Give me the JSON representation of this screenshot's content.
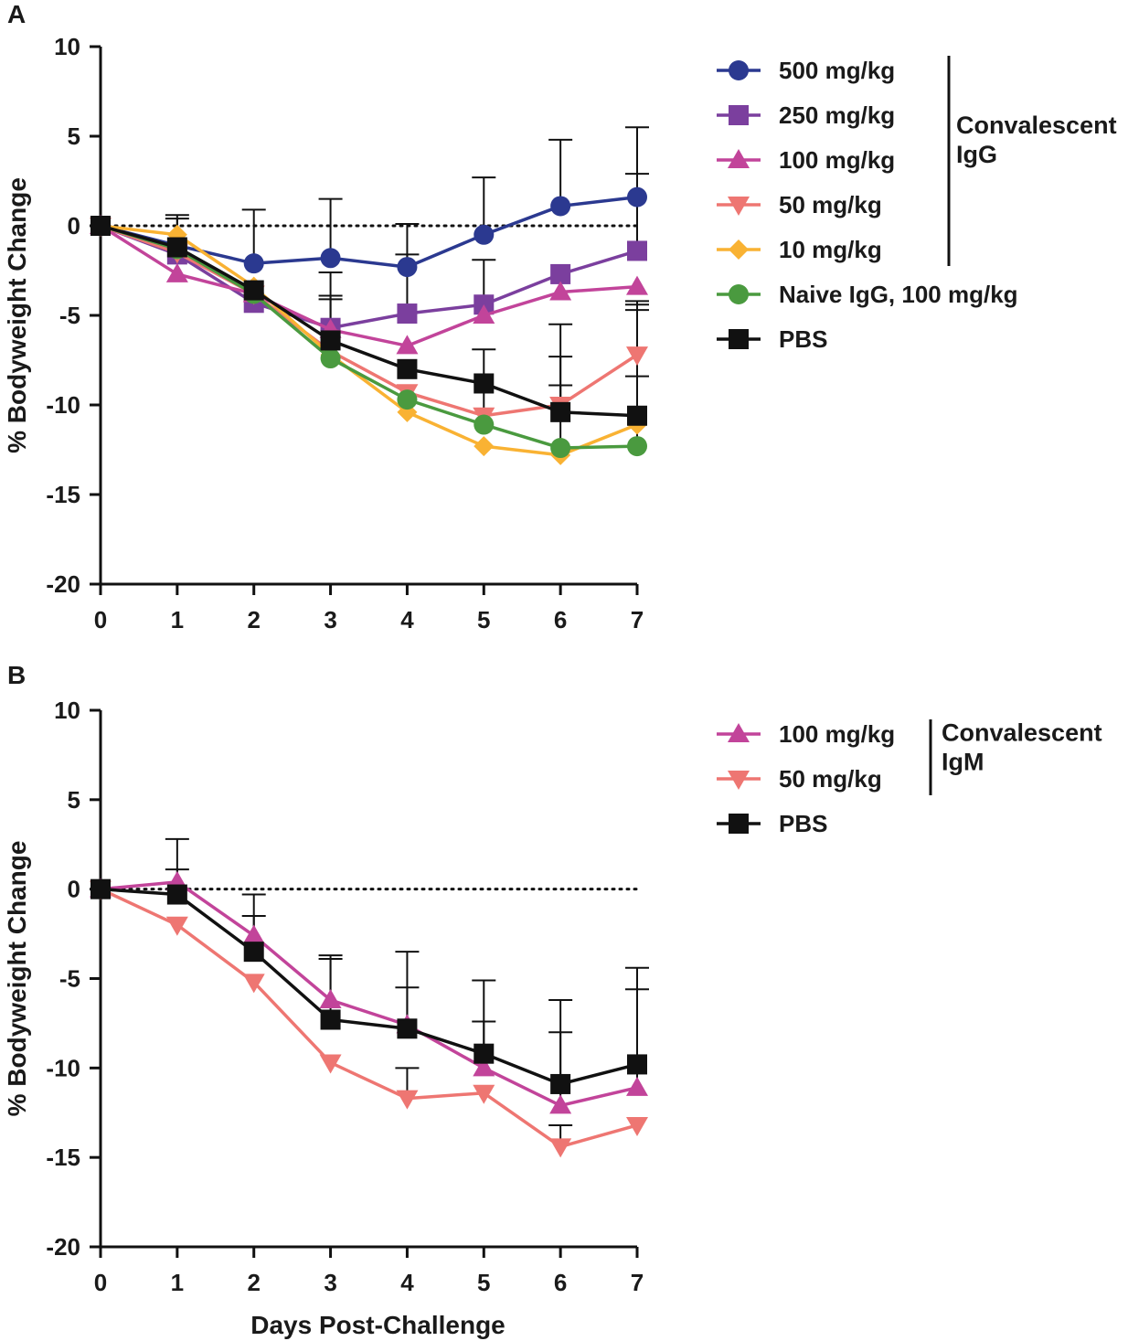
{
  "chart_data": [
    {
      "panel": "A",
      "type": "line",
      "xlabel": "",
      "ylabel": "% Bodyweight Change",
      "x": [
        0,
        1,
        2,
        3,
        4,
        5,
        6,
        7
      ],
      "xlim": [
        0,
        7
      ],
      "ylim": [
        -20,
        10
      ],
      "y_ticks": [
        "10",
        "5",
        "0",
        "-5",
        "-10",
        "-15",
        "-20"
      ],
      "x_ticks": [
        "0",
        "1",
        "2",
        "3",
        "4",
        "5",
        "6",
        "7"
      ],
      "reference_line_y": 0,
      "legend_position": "right",
      "group_label": [
        "Convalescent",
        "IgG"
      ],
      "group_span": 5,
      "series": [
        {
          "name": "500 mg/kg",
          "color": "#2b3990",
          "marker": "circle",
          "values": [
            0,
            -1.1,
            -2.1,
            -1.8,
            -2.3,
            -0.5,
            1.1,
            1.6
          ],
          "error_upper": [
            null,
            0.6,
            0.9,
            1.5,
            0.1,
            2.7,
            4.8,
            5.5
          ]
        },
        {
          "name": "250 mg/kg",
          "color": "#7b3f9e",
          "marker": "square",
          "values": [
            0,
            -1.6,
            -4.3,
            -5.7,
            -4.9,
            -4.4,
            -2.7,
            -1.4
          ],
          "error_upper": [
            null,
            0.4,
            null,
            null,
            -1.6,
            -1.9,
            null,
            2.9
          ]
        },
        {
          "name": "100 mg/kg",
          "color": "#c2449a",
          "marker": "triangle-up",
          "values": [
            0,
            -2.7,
            -3.8,
            -5.8,
            -6.7,
            -5.0,
            -3.7,
            -3.4
          ],
          "error_upper": [
            null,
            null,
            null,
            -3.9,
            null,
            null,
            null,
            null
          ]
        },
        {
          "name": "50 mg/kg",
          "color": "#ee7672",
          "marker": "triangle-down",
          "values": [
            0,
            -1.5,
            -3.8,
            -7.0,
            -9.3,
            -10.6,
            -10.0,
            -7.2
          ],
          "error_upper": [
            null,
            null,
            null,
            null,
            null,
            null,
            -7.3,
            -4.2
          ]
        },
        {
          "name": "10 mg/kg",
          "color": "#f9b233",
          "marker": "diamond",
          "values": [
            0,
            -0.5,
            -3.4,
            -7.2,
            -10.4,
            -12.3,
            -12.8,
            -11.1
          ],
          "error_upper": [
            null,
            null,
            null,
            null,
            null,
            null,
            null,
            -8.4
          ]
        },
        {
          "name": "Naive IgG, 100 mg/kg",
          "color": "#4a9a3f",
          "marker": "circle",
          "values": [
            0,
            -1.3,
            -3.8,
            -7.4,
            -9.7,
            -11.1,
            -12.4,
            -12.3
          ],
          "error_upper": [
            null,
            null,
            null,
            -4.1,
            null,
            -6.9,
            -8.9,
            -4.4
          ]
        },
        {
          "name": "PBS",
          "color": "#111111",
          "marker": "square",
          "values": [
            0,
            -1.2,
            -3.6,
            -6.4,
            -8.0,
            -8.8,
            -10.4,
            -10.6
          ],
          "error_upper": [
            null,
            null,
            null,
            -2.6,
            null,
            null,
            -5.5,
            -4.7
          ]
        }
      ]
    },
    {
      "panel": "B",
      "type": "line",
      "xlabel": "Days Post-Challenge",
      "ylabel": "% Bodyweight Change",
      "x": [
        0,
        1,
        2,
        3,
        4,
        5,
        6,
        7
      ],
      "xlim": [
        0,
        7
      ],
      "ylim": [
        -20,
        10
      ],
      "y_ticks": [
        "10",
        "5",
        "0",
        "-5",
        "-10",
        "-15",
        "-20"
      ],
      "x_ticks": [
        "0",
        "1",
        "2",
        "3",
        "4",
        "5",
        "6",
        "7"
      ],
      "reference_line_y": 0,
      "legend_position": "right",
      "group_label": [
        "Convalescent",
        "IgM"
      ],
      "group_span": 2,
      "series": [
        {
          "name": "100 mg/kg",
          "color": "#c2449a",
          "marker": "triangle-up",
          "values": [
            0,
            0.4,
            -2.6,
            -6.2,
            -7.6,
            -10.0,
            -12.1,
            -11.1
          ],
          "error_upper": [
            null,
            2.8,
            -0.3,
            -3.7,
            -3.5,
            -5.1,
            -6.2,
            -4.4
          ]
        },
        {
          "name": "50 mg/kg",
          "color": "#ee7672",
          "marker": "triangle-down",
          "values": [
            0,
            -2.0,
            -5.2,
            -9.7,
            -11.7,
            -11.4,
            -14.4,
            -13.2
          ],
          "error_upper": [
            null,
            null,
            null,
            null,
            -10.0,
            null,
            -13.2,
            null
          ]
        },
        {
          "name": "PBS",
          "color": "#111111",
          "marker": "square",
          "values": [
            0,
            -0.3,
            -3.5,
            -7.3,
            -7.8,
            -9.2,
            -10.9,
            -9.8
          ],
          "error_upper": [
            null,
            1.1,
            -1.5,
            -3.9,
            -5.5,
            -7.4,
            -8.0,
            -5.6
          ]
        }
      ]
    }
  ]
}
